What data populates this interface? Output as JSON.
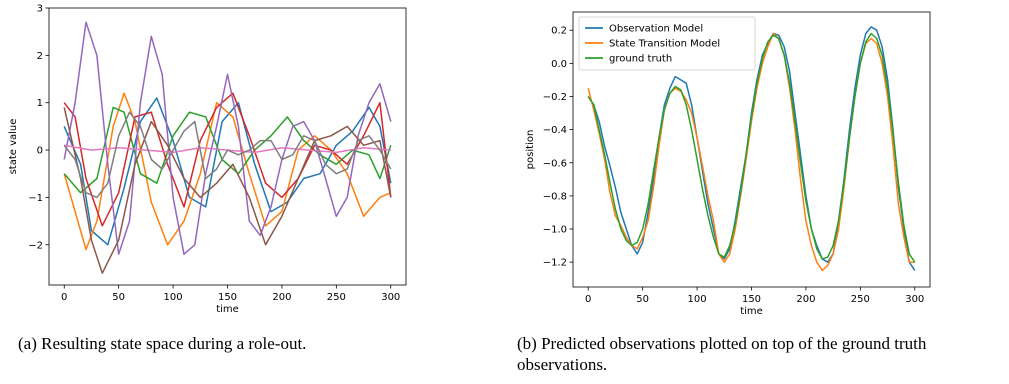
{
  "chart_data": [
    {
      "type": "line",
      "title": "",
      "xlabel": "time",
      "ylabel": "state value",
      "xlim": [
        -14,
        314
      ],
      "ylim": [
        -2.85,
        3.0
      ],
      "xticks": [
        0,
        50,
        100,
        150,
        200,
        250,
        300
      ],
      "yticks": [
        -2,
        -1,
        0,
        1,
        2,
        3
      ],
      "grid": false,
      "legend": "none",
      "series": [
        {
          "color": "#1f77b4",
          "x": [
            0,
            15,
            25,
            40,
            55,
            70,
            85,
            100,
            115,
            130,
            145,
            160,
            175,
            190,
            205,
            220,
            235,
            250,
            265,
            280,
            290,
            300
          ],
          "y": [
            0.5,
            -0.3,
            -1.7,
            -2.0,
            -0.8,
            0.6,
            1.1,
            0.2,
            -1.0,
            -1.2,
            0.6,
            1.0,
            -0.3,
            -1.3,
            -1.1,
            -0.6,
            -0.5,
            0.1,
            0.4,
            0.9,
            0.5,
            -0.7
          ]
        },
        {
          "color": "#ff7f0e",
          "x": [
            0,
            10,
            20,
            30,
            45,
            55,
            65,
            80,
            95,
            110,
            125,
            140,
            155,
            170,
            185,
            200,
            215,
            230,
            245,
            260,
            275,
            290,
            300
          ],
          "y": [
            -0.5,
            -1.3,
            -2.1,
            -1.5,
            0.5,
            1.2,
            0.6,
            -1.1,
            -2.0,
            -1.5,
            -0.5,
            1.0,
            0.7,
            -0.5,
            -1.6,
            -1.3,
            0.0,
            0.3,
            0.0,
            -0.5,
            -1.4,
            -1.0,
            -0.9
          ]
        },
        {
          "color": "#2ca02c",
          "x": [
            0,
            15,
            30,
            45,
            55,
            70,
            85,
            100,
            115,
            130,
            145,
            160,
            175,
            190,
            205,
            220,
            235,
            250,
            265,
            280,
            290,
            300
          ],
          "y": [
            -0.5,
            -0.9,
            -0.6,
            0.9,
            0.8,
            -0.5,
            -0.7,
            0.3,
            0.8,
            0.7,
            -0.2,
            -0.5,
            0.0,
            0.3,
            0.7,
            0.2,
            -0.1,
            -0.3,
            0.0,
            -0.1,
            -0.6,
            0.1
          ]
        },
        {
          "color": "#d62728",
          "x": [
            0,
            10,
            20,
            35,
            50,
            65,
            80,
            95,
            110,
            125,
            140,
            155,
            170,
            185,
            200,
            215,
            230,
            245,
            260,
            275,
            290,
            300
          ],
          "y": [
            1.0,
            0.7,
            -0.6,
            -1.6,
            -0.9,
            0.7,
            0.8,
            -0.3,
            -1.2,
            0.2,
            0.9,
            1.2,
            0.3,
            -0.7,
            -1.0,
            -0.6,
            0.1,
            0.0,
            -0.3,
            0.3,
            1.0,
            -1.0
          ]
        },
        {
          "color": "#9467bd",
          "x": [
            0,
            10,
            20,
            30,
            40,
            50,
            60,
            70,
            80,
            90,
            100,
            110,
            120,
            130,
            140,
            150,
            160,
            170,
            180,
            190,
            200,
            210,
            220,
            230,
            240,
            250,
            260,
            270,
            280,
            290,
            300
          ],
          "y": [
            -0.2,
            1.0,
            2.7,
            2.0,
            -0.3,
            -2.2,
            -1.5,
            1.0,
            2.4,
            1.6,
            -1.0,
            -2.2,
            -2.0,
            -0.5,
            0.5,
            1.6,
            0.5,
            -1.5,
            -1.8,
            -1.2,
            -0.2,
            0.5,
            0.6,
            0.2,
            -0.6,
            -1.4,
            -1.0,
            0.3,
            1.0,
            1.4,
            0.6
          ]
        },
        {
          "color": "#8c564b",
          "x": [
            0,
            15,
            25,
            35,
            50,
            65,
            80,
            95,
            110,
            125,
            140,
            155,
            170,
            185,
            200,
            215,
            230,
            245,
            260,
            275,
            290,
            300
          ],
          "y": [
            0.9,
            -0.6,
            -1.9,
            -2.6,
            -1.9,
            -0.3,
            0.6,
            0.1,
            -0.6,
            -1.0,
            -0.7,
            -0.3,
            -1.0,
            -2.0,
            -1.4,
            -0.6,
            0.2,
            0.3,
            0.5,
            0.1,
            0.2,
            -1.0
          ]
        },
        {
          "color": "#e377c2",
          "x": [
            0,
            25,
            50,
            75,
            100,
            125,
            150,
            175,
            200,
            225,
            250,
            275,
            300
          ],
          "y": [
            0.1,
            0.0,
            0.05,
            0.0,
            -0.05,
            0.05,
            0.0,
            -0.05,
            0.05,
            0.0,
            -0.05,
            0.05,
            0.0
          ]
        },
        {
          "color": "#7f7f7f",
          "x": [
            0,
            10,
            20,
            30,
            40,
            50,
            60,
            70,
            80,
            90,
            100,
            110,
            120,
            130,
            140,
            150,
            160,
            170,
            180,
            190,
            200,
            210,
            220,
            230,
            240,
            250,
            260,
            270,
            280,
            290,
            300
          ],
          "y": [
            0.1,
            -0.2,
            -0.9,
            -1.0,
            -0.7,
            0.3,
            0.8,
            0.5,
            -0.2,
            -0.4,
            0.0,
            0.4,
            0.6,
            -0.6,
            -0.4,
            0.0,
            -0.1,
            0.0,
            0.2,
            0.2,
            -0.2,
            -0.1,
            0.3,
            0.2,
            -0.3,
            -0.5,
            -0.4,
            0.2,
            0.3,
            0.0,
            -0.4
          ]
        }
      ]
    },
    {
      "type": "line",
      "title": "",
      "xlabel": "time",
      "ylabel": "position",
      "xlim": [
        -14,
        314
      ],
      "ylim": [
        -1.35,
        0.31
      ],
      "xticks": [
        0,
        50,
        100,
        150,
        200,
        250,
        300
      ],
      "yticks": [
        0.2,
        0.0,
        -0.2,
        -0.4,
        -0.6,
        -0.8,
        -1.0,
        -1.2
      ],
      "ytick_labels": [
        "0.2",
        "0.0",
        "−0.2",
        "−0.4",
        "−0.6",
        "−0.8",
        "−1.0",
        "−1.2"
      ],
      "grid": false,
      "legend": "top-left",
      "series": [
        {
          "name": "Observation Model",
          "color": "#1f77b4",
          "x": [
            0,
            5,
            10,
            15,
            20,
            25,
            30,
            35,
            40,
            45,
            50,
            55,
            60,
            65,
            70,
            75,
            80,
            85,
            90,
            95,
            100,
            105,
            110,
            115,
            120,
            125,
            130,
            135,
            140,
            145,
            150,
            155,
            160,
            165,
            170,
            175,
            180,
            185,
            190,
            195,
            200,
            205,
            210,
            215,
            220,
            225,
            230,
            235,
            240,
            245,
            250,
            255,
            260,
            265,
            270,
            275,
            280,
            285,
            290,
            295,
            300
          ],
          "y": [
            -0.2,
            -0.25,
            -0.35,
            -0.5,
            -0.62,
            -0.75,
            -0.9,
            -1.0,
            -1.1,
            -1.15,
            -1.08,
            -0.9,
            -0.7,
            -0.45,
            -0.25,
            -0.15,
            -0.08,
            -0.1,
            -0.12,
            -0.25,
            -0.45,
            -0.65,
            -0.85,
            -1.0,
            -1.15,
            -1.18,
            -1.12,
            -0.95,
            -0.75,
            -0.55,
            -0.3,
            -0.1,
            0.05,
            0.12,
            0.18,
            0.17,
            0.1,
            -0.05,
            -0.3,
            -0.55,
            -0.8,
            -1.0,
            -1.1,
            -1.18,
            -1.2,
            -1.15,
            -0.95,
            -0.7,
            -0.4,
            -0.15,
            0.05,
            0.18,
            0.22,
            0.2,
            0.1,
            -0.1,
            -0.4,
            -0.75,
            -1.0,
            -1.2,
            -1.25
          ]
        },
        {
          "name": "State Transition Model",
          "color": "#ff7f0e",
          "x": [
            0,
            5,
            10,
            15,
            20,
            25,
            30,
            35,
            40,
            45,
            50,
            55,
            60,
            65,
            70,
            75,
            80,
            85,
            90,
            95,
            100,
            105,
            110,
            115,
            120,
            125,
            130,
            135,
            140,
            145,
            150,
            155,
            160,
            165,
            170,
            175,
            180,
            185,
            190,
            195,
            200,
            205,
            210,
            215,
            220,
            225,
            230,
            235,
            240,
            245,
            250,
            255,
            260,
            265,
            270,
            275,
            280,
            285,
            290,
            295,
            300
          ],
          "y": [
            -0.15,
            -0.28,
            -0.42,
            -0.58,
            -0.78,
            -0.92,
            -0.98,
            -1.05,
            -1.1,
            -1.12,
            -1.05,
            -0.95,
            -0.75,
            -0.5,
            -0.28,
            -0.18,
            -0.15,
            -0.17,
            -0.22,
            -0.3,
            -0.45,
            -0.62,
            -0.8,
            -0.95,
            -1.15,
            -1.2,
            -1.15,
            -1.0,
            -0.8,
            -0.58,
            -0.35,
            -0.15,
            0.0,
            0.1,
            0.18,
            0.15,
            0.05,
            -0.15,
            -0.4,
            -0.7,
            -0.95,
            -1.1,
            -1.2,
            -1.25,
            -1.22,
            -1.15,
            -1.0,
            -0.75,
            -0.45,
            -0.2,
            0.0,
            0.12,
            0.15,
            0.12,
            0.0,
            -0.2,
            -0.5,
            -0.85,
            -1.05,
            -1.2,
            -1.2
          ]
        },
        {
          "name": "ground truth",
          "color": "#2ca02c",
          "x": [
            0,
            5,
            10,
            15,
            20,
            25,
            30,
            35,
            40,
            45,
            50,
            55,
            60,
            65,
            70,
            75,
            80,
            85,
            90,
            95,
            100,
            105,
            110,
            115,
            120,
            125,
            130,
            135,
            140,
            145,
            150,
            155,
            160,
            165,
            170,
            175,
            180,
            185,
            190,
            195,
            200,
            205,
            210,
            215,
            220,
            225,
            230,
            235,
            240,
            245,
            250,
            255,
            260,
            265,
            270,
            275,
            280,
            285,
            290,
            295,
            300
          ],
          "y": [
            -0.2,
            -0.25,
            -0.4,
            -0.55,
            -0.72,
            -0.88,
            -1.0,
            -1.07,
            -1.1,
            -1.08,
            -1.0,
            -0.85,
            -0.65,
            -0.45,
            -0.28,
            -0.18,
            -0.14,
            -0.16,
            -0.25,
            -0.4,
            -0.58,
            -0.76,
            -0.92,
            -1.05,
            -1.15,
            -1.17,
            -1.1,
            -0.97,
            -0.78,
            -0.55,
            -0.32,
            -0.12,
            0.03,
            0.13,
            0.17,
            0.15,
            0.05,
            -0.12,
            -0.35,
            -0.6,
            -0.83,
            -1.0,
            -1.12,
            -1.18,
            -1.17,
            -1.1,
            -0.95,
            -0.72,
            -0.45,
            -0.2,
            0.0,
            0.13,
            0.18,
            0.15,
            0.05,
            -0.15,
            -0.42,
            -0.72,
            -0.98,
            -1.15,
            -1.2
          ]
        }
      ]
    }
  ],
  "captions": {
    "a": "(a) Resulting state space during a role-out.",
    "b": "(b) Predicted observations plotted on top of the ground truth observations."
  }
}
